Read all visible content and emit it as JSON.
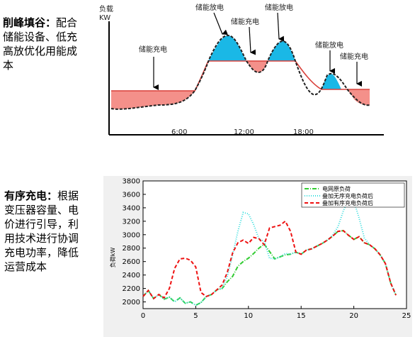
{
  "text_blocks": {
    "peak_shaving": {
      "title": "削峰填谷：",
      "body": "配合储能设备、低充高放优化用能成本"
    },
    "ordered_charging": {
      "title": "有序充电：",
      "body": "根据变压器容量、电价进行引导，利用技术进行协调充电功率，降低运营成本"
    }
  },
  "diagram": {
    "y_axis_label_line1": "负载",
    "y_axis_label_line2": "KW",
    "time_labels": [
      "6:00",
      "12:00",
      "18:00"
    ],
    "annotations": {
      "charge_left": "储能充电",
      "discharge_1": "储能放电",
      "charge_mid": "储能充电",
      "discharge_2": "储能放电",
      "discharge_3": "储能放电",
      "charge_right": "储能充电"
    },
    "colors": {
      "discharge_fill": "#1ab8e6",
      "charge_fill": "#f4908a",
      "level_line": "#d9413b"
    }
  },
  "chart_data": {
    "type": "line",
    "ylabel": "负荷kW",
    "xlim": [
      0,
      25
    ],
    "ylim": [
      1900,
      3800
    ],
    "xticks": [
      0,
      5,
      10,
      15,
      20,
      25
    ],
    "yticks": [
      2000,
      2200,
      2400,
      2600,
      2800,
      3000,
      3200,
      3400,
      3600,
      3800
    ],
    "legend_position": "top-right",
    "series": [
      {
        "name": "电网原负荷",
        "color": "#33cc33",
        "style": "dashdot",
        "x": [
          0,
          0.5,
          1,
          1.5,
          2,
          2.5,
          3,
          3.5,
          4,
          4.5,
          5,
          5.5,
          6,
          6.5,
          7,
          7.5,
          8,
          8.5,
          9,
          9.5,
          10,
          10.5,
          11,
          11.5,
          12,
          12.5,
          13,
          13.5,
          14,
          14.5,
          15,
          15.5,
          16,
          16.5,
          17,
          17.5,
          18,
          18.5,
          19,
          19.5,
          20,
          20.5,
          21,
          21.5,
          22,
          22.5,
          23,
          23.5,
          24
        ],
        "y": [
          2080,
          2170,
          2050,
          2110,
          2040,
          2070,
          2000,
          2060,
          1980,
          2000,
          1950,
          1990,
          2080,
          2110,
          2180,
          2200,
          2300,
          2380,
          2530,
          2600,
          2650,
          2720,
          2800,
          2860,
          2750,
          2640,
          2670,
          2700,
          2710,
          2740,
          2710,
          2770,
          2790,
          2830,
          2870,
          2920,
          2980,
          3050,
          3060,
          2990,
          2930,
          2970,
          2880,
          2850,
          2790,
          2700,
          2570,
          2280,
          2100
        ]
      },
      {
        "name": "叠加无序充电负荷后",
        "color": "#33dddd",
        "style": "dotted",
        "x": [
          0,
          0.5,
          1,
          1.5,
          2,
          2.5,
          3,
          3.5,
          4,
          4.5,
          5,
          5.5,
          6,
          6.5,
          7,
          7.5,
          8,
          8.5,
          9,
          9.5,
          10,
          10.5,
          11,
          11.5,
          12,
          12.5,
          13,
          13.5,
          14,
          14.5,
          15,
          15.5,
          16,
          16.5,
          17,
          17.5,
          18,
          18.5,
          19,
          19.5,
          20,
          20.5,
          21,
          21.5,
          22,
          22.5,
          23,
          23.5,
          24
        ],
        "y": [
          2080,
          2170,
          2050,
          2110,
          2040,
          2070,
          2000,
          2060,
          1980,
          2000,
          1950,
          1990,
          2080,
          2110,
          2180,
          2200,
          2380,
          2700,
          3050,
          3330,
          3310,
          3150,
          2940,
          2900,
          2650,
          2640,
          2670,
          2720,
          2710,
          2740,
          2710,
          2770,
          2790,
          2830,
          2870,
          2920,
          2990,
          3120,
          3350,
          3530,
          3500,
          3250,
          2950,
          2850,
          2790,
          2700,
          2570,
          2280,
          2100
        ]
      },
      {
        "name": "叠加有序充电负荷后",
        "color": "#ee1111",
        "style": "dashed",
        "x": [
          0,
          0.5,
          1,
          1.5,
          2,
          2.5,
          3,
          3.5,
          4,
          4.5,
          5,
          5.5,
          6,
          6.5,
          7,
          7.5,
          8,
          8.5,
          9,
          9.5,
          10,
          10.5,
          11,
          11.5,
          12,
          12.5,
          13,
          13.5,
          14,
          14.5,
          15,
          15.5,
          16,
          16.5,
          17,
          17.5,
          18,
          18.5,
          19,
          19.5,
          20,
          20.5,
          21,
          21.5,
          22,
          22.5,
          23,
          23.5,
          24
        ],
        "y": [
          2080,
          2170,
          2050,
          2110,
          2060,
          2200,
          2500,
          2640,
          2650,
          2620,
          2520,
          2140,
          2080,
          2110,
          2180,
          2250,
          2440,
          2730,
          2880,
          2920,
          2870,
          2960,
          2940,
          2850,
          3100,
          3120,
          3140,
          3200,
          3050,
          2740,
          2710,
          2770,
          2790,
          2830,
          2870,
          2920,
          2980,
          3050,
          3060,
          2990,
          2930,
          2970,
          2880,
          2850,
          2790,
          2700,
          2570,
          2280,
          2100
        ]
      }
    ]
  }
}
